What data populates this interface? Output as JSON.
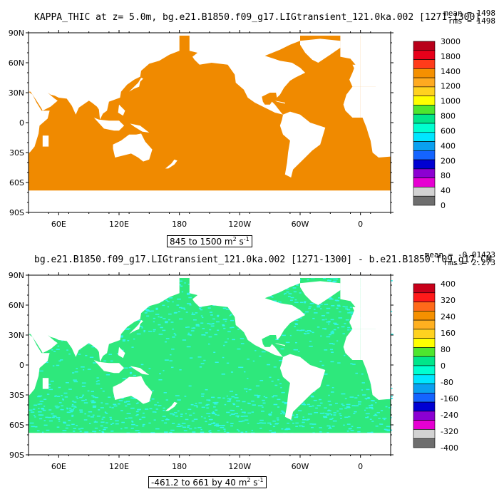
{
  "panels": [
    {
      "title": "KAPPA_THIC at z=    5.0m, bg.e21.B1850.f09_g17.LIGtransient_121.0ka.002 [1271-1300]",
      "mean": "mean = 1498",
      "rms": "rms = 1498",
      "range": "845 to 1500 m",
      "units_sup": "2",
      "units_rest": " s",
      "units_exp": "-1",
      "ocean_color": "#f08a00",
      "speckle_color": "",
      "colorbar": {
        "labels": [
          "3000",
          "1800",
          "1400",
          "1200",
          "1000",
          "800",
          "600",
          "400",
          "200",
          "80",
          "40",
          "0"
        ],
        "colors": [
          "#b8001a",
          "#e8001a",
          "#ff3b1a",
          "#f59000",
          "#ffaa20",
          "#ffd21f",
          "#ffff00",
          "#4ee62e",
          "#00e68a",
          "#00ffd0",
          "#00e6ff",
          "#0aa0f0",
          "#1464ff",
          "#0000d2",
          "#8c00d2",
          "#e600d2",
          "#d2d2d2",
          "#6e6e6e"
        ]
      }
    },
    {
      "title": "bg.e21.B1850.f09_g17.LIGtransient_121.0ka.002 [1271-1300] - b.e21.B1850.f09_g17.CM",
      "mean": "mean = -0.01423",
      "rms": "rms = 2.273",
      "range": "-461.2 to 661 by 40 m",
      "units_sup": "2",
      "units_rest": " s",
      "units_exp": "-1",
      "ocean_color": "#2ee87c",
      "speckle_color": "#33f4ee",
      "colorbar": {
        "labels": [
          "400",
          "320",
          "240",
          "160",
          "80",
          "0",
          "-80",
          "-160",
          "-240",
          "-320",
          "-400"
        ],
        "colors": [
          "#c8001a",
          "#ff1a1a",
          "#ff6a1a",
          "#f59000",
          "#ffb020",
          "#ffd21f",
          "#ffff00",
          "#4ee62e",
          "#00e68a",
          "#00ffd0",
          "#00e6ff",
          "#0aa0f0",
          "#1464ff",
          "#0000d2",
          "#8c00d2",
          "#e600d2",
          "#d2d2d2",
          "#6e6e6e"
        ]
      }
    }
  ],
  "axes": {
    "lat_labels": [
      "90N",
      "60N",
      "30N",
      "0",
      "30S",
      "60S",
      "90S"
    ],
    "lon_labels": [
      "60E",
      "120E",
      "180",
      "120W",
      "60W",
      "0"
    ]
  }
}
